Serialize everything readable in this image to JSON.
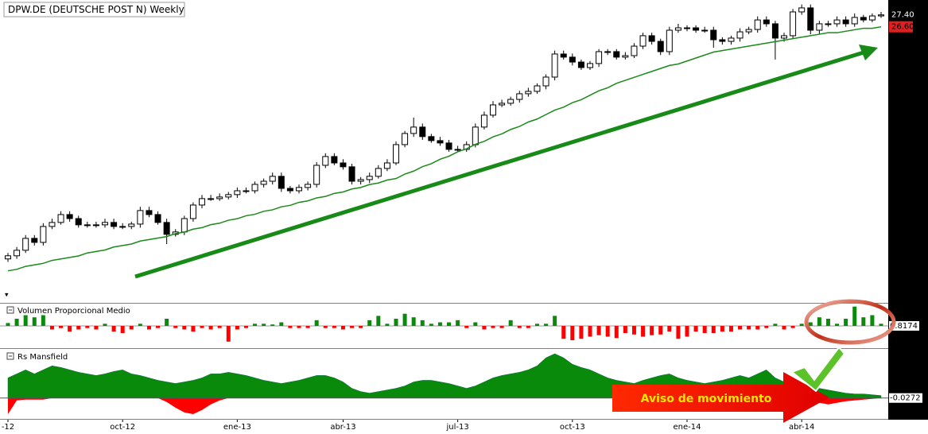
{
  "chart_data": {
    "type": "candlestick",
    "title": "DPW.DE (DEUTSCHE POST N) Weekly",
    "categories": [
      "-12",
      null,
      null,
      null,
      null,
      null,
      null,
      null,
      null,
      null,
      null,
      null,
      null,
      "oct-12",
      null,
      null,
      null,
      null,
      null,
      null,
      null,
      null,
      null,
      null,
      null,
      null,
      "ene-13",
      null,
      null,
      null,
      null,
      null,
      null,
      null,
      null,
      null,
      null,
      null,
      "abr-13",
      null,
      null,
      null,
      null,
      null,
      null,
      null,
      null,
      null,
      null,
      null,
      null,
      "jul-13",
      null,
      null,
      null,
      null,
      null,
      null,
      null,
      null,
      null,
      null,
      null,
      null,
      "oct-13",
      null,
      null,
      null,
      null,
      null,
      null,
      null,
      null,
      null,
      null,
      null,
      null,
      "ene-14",
      null,
      null,
      null,
      null,
      null,
      null,
      null,
      null,
      null,
      null,
      null,
      null,
      "abr-14",
      null,
      null,
      null,
      null,
      null,
      null,
      null,
      null,
      null
    ],
    "open": [
      11.0,
      11.21,
      11.58,
      12.38,
      12.11,
      13.18,
      13.45,
      13.98,
      13.71,
      13.29,
      13.29,
      13.29,
      13.45,
      13.18,
      13.18,
      13.34,
      14.25,
      13.98,
      13.45,
      12.65,
      12.81,
      13.71,
      14.62,
      15.05,
      15.05,
      15.16,
      15.32,
      15.58,
      15.58,
      16.01,
      16.22,
      16.55,
      15.74,
      15.58,
      15.8,
      16.01,
      17.29,
      17.88,
      17.45,
      17.19,
      16.22,
      16.33,
      16.55,
      17.08,
      17.45,
      18.68,
      19.43,
      19.86,
      19.22,
      18.95,
      18.79,
      18.36,
      18.36,
      18.68,
      19.86,
      20.66,
      21.35,
      21.46,
      21.72,
      22.1,
      22.26,
      22.63,
      23.22,
      24.77,
      24.56,
      24.23,
      23.86,
      24.13,
      24.93,
      24.93,
      24.56,
      24.66,
      25.3,
      26.0,
      25.62,
      24.93,
      26.37,
      26.53,
      26.53,
      26.37,
      26.37,
      25.73,
      25.62,
      25.84,
      26.26,
      26.42,
      27.06,
      26.8,
      25.84,
      26.0,
      27.6,
      27.87,
      26.37,
      26.8,
      26.8,
      27.06,
      26.8,
      27.23,
      27.06,
      27.33
    ],
    "high": [
      11.4,
      11.8,
      12.6,
      12.6,
      13.4,
      13.7,
      14.2,
      14.2,
      13.9,
      13.5,
      13.5,
      13.7,
      13.7,
      13.4,
      13.5,
      14.5,
      14.5,
      14.2,
      13.7,
      13.0,
      13.9,
      14.8,
      15.3,
      15.3,
      15.4,
      15.5,
      15.8,
      15.8,
      16.2,
      16.4,
      16.8,
      16.8,
      15.9,
      16.0,
      16.2,
      17.5,
      18.1,
      18.1,
      17.7,
      17.4,
      16.5,
      16.8,
      17.3,
      17.7,
      18.9,
      19.6,
      20.5,
      20.1,
      19.4,
      19.2,
      19.0,
      18.6,
      18.9,
      20.1,
      20.9,
      21.6,
      21.7,
      21.9,
      22.3,
      22.5,
      22.8,
      23.4,
      25.0,
      25.0,
      24.8,
      24.4,
      24.3,
      25.1,
      25.1,
      25.1,
      24.9,
      25.5,
      26.2,
      26.2,
      25.8,
      26.6,
      26.8,
      26.7,
      26.7,
      26.6,
      26.6,
      25.9,
      26.0,
      26.5,
      26.6,
      27.3,
      27.3,
      27.0,
      26.2,
      27.8,
      28.1,
      28.1,
      27.0,
      27.0,
      27.3,
      27.3,
      27.5,
      27.4,
      27.5,
      27.6
    ],
    "low": [
      10.8,
      11.0,
      11.4,
      11.9,
      11.9,
      13.0,
      13.3,
      13.5,
      13.1,
      13.1,
      13.1,
      13.1,
      13.0,
      13.0,
      13.0,
      13.1,
      13.8,
      13.3,
      12.0,
      12.5,
      12.6,
      13.5,
      14.4,
      14.9,
      14.9,
      15.0,
      15.1,
      15.4,
      15.4,
      15.8,
      16.0,
      15.5,
      15.4,
      15.4,
      15.6,
      15.8,
      17.1,
      17.3,
      17.0,
      16.0,
      16.0,
      16.1,
      16.4,
      16.9,
      17.3,
      18.5,
      19.2,
      19.0,
      18.8,
      18.6,
      18.2,
      18.2,
      18.2,
      18.5,
      19.7,
      20.5,
      21.2,
      21.3,
      21.5,
      21.9,
      22.1,
      22.4,
      23.0,
      24.4,
      24.0,
      23.7,
      23.7,
      23.9,
      24.7,
      24.4,
      24.4,
      24.5,
      25.1,
      25.4,
      24.7,
      24.7,
      26.2,
      26.3,
      26.2,
      26.2,
      25.2,
      25.4,
      25.4,
      25.6,
      26.1,
      26.2,
      26.6,
      24.4,
      25.6,
      25.8,
      27.4,
      26.1,
      26.1,
      26.6,
      26.6,
      26.6,
      26.6,
      26.9,
      26.9,
      27.2
    ],
    "close": [
      11.21,
      11.58,
      12.38,
      12.11,
      13.18,
      13.45,
      13.98,
      13.71,
      13.29,
      13.29,
      13.29,
      13.45,
      13.18,
      13.18,
      13.34,
      14.25,
      13.98,
      13.45,
      12.65,
      12.81,
      13.71,
      14.62,
      15.05,
      15.05,
      15.16,
      15.32,
      15.58,
      15.58,
      16.01,
      16.22,
      16.55,
      15.74,
      15.58,
      15.8,
      16.01,
      17.29,
      17.88,
      17.45,
      17.19,
      16.22,
      16.33,
      16.55,
      17.08,
      17.45,
      18.68,
      19.43,
      19.86,
      19.22,
      18.95,
      18.79,
      18.36,
      18.36,
      18.68,
      19.86,
      20.66,
      21.35,
      21.46,
      21.72,
      22.1,
      22.26,
      22.63,
      23.22,
      24.77,
      24.56,
      24.23,
      23.86,
      24.13,
      24.93,
      24.93,
      24.56,
      24.66,
      25.3,
      26.0,
      25.62,
      24.93,
      26.37,
      26.53,
      26.53,
      26.37,
      26.37,
      25.73,
      25.62,
      25.84,
      26.26,
      26.42,
      27.06,
      26.8,
      25.84,
      26.0,
      27.6,
      27.87,
      26.37,
      26.8,
      26.8,
      27.06,
      26.8,
      27.23,
      27.06,
      27.33,
      27.4
    ],
    "ylim": [
      8.1,
      28.4
    ],
    "ma": {
      "color": "#1a8a1a",
      "values": [
        10.2,
        10.3,
        10.5,
        10.6,
        10.7,
        10.9,
        11.0,
        11.1,
        11.2,
        11.4,
        11.5,
        11.6,
        11.8,
        11.9,
        12.0,
        12.2,
        12.3,
        12.4,
        12.5,
        12.7,
        12.8,
        13.0,
        13.1,
        13.3,
        13.4,
        13.6,
        13.7,
        13.9,
        14.0,
        14.2,
        14.3,
        14.5,
        14.6,
        14.8,
        14.9,
        15.1,
        15.2,
        15.4,
        15.5,
        15.7,
        15.8,
        16.0,
        16.1,
        16.3,
        16.4,
        16.7,
        16.9,
        17.2,
        17.4,
        17.7,
        17.9,
        18.2,
        18.4,
        18.7,
        18.9,
        19.2,
        19.4,
        19.7,
        19.9,
        20.2,
        20.4,
        20.7,
        21.0,
        21.2,
        21.5,
        21.7,
        22.0,
        22.3,
        22.5,
        22.8,
        23.0,
        23.2,
        23.4,
        23.6,
        23.8,
        24.0,
        24.1,
        24.3,
        24.5,
        24.7,
        24.9,
        25.0,
        25.1,
        25.2,
        25.3,
        25.4,
        25.5,
        25.6,
        25.7,
        25.8,
        25.9,
        26.0,
        26.1,
        26.2,
        26.2,
        26.3,
        26.4,
        26.5,
        26.5,
        26.6
      ]
    },
    "price_labels": [
      {
        "value": 27.4,
        "label": "27.40",
        "color": "#000000"
      },
      {
        "value": 26.6,
        "label": "26.60",
        "color": "#e02020"
      }
    ],
    "up_color": "#0a8a0a",
    "down_color": "#ff0000",
    "panes": [
      {
        "title": "Volumen Proporcional Medio",
        "ylim": [
          -30,
          30
        ],
        "value_label": "0.8174",
        "values": [
          4,
          10,
          15,
          12,
          15,
          -5,
          -3,
          -8,
          -5,
          -3,
          -5,
          3,
          -8,
          -10,
          -5,
          3,
          -5,
          -3,
          10,
          -3,
          -5,
          -8,
          -3,
          -5,
          -3,
          -22,
          -5,
          -3,
          3,
          3,
          2,
          5,
          -3,
          -3,
          -3,
          8,
          -3,
          -3,
          -5,
          -3,
          -3,
          8,
          14,
          3,
          10,
          17,
          12,
          8,
          3,
          5,
          5,
          8,
          -3,
          5,
          -5,
          -3,
          -3,
          8,
          -3,
          -3,
          3,
          3,
          14,
          -18,
          -20,
          -18,
          -15,
          -13,
          -15,
          -17,
          -10,
          -12,
          -15,
          -13,
          -12,
          -8,
          -18,
          -15,
          -8,
          -10,
          -10,
          -8,
          -8,
          -5,
          -5,
          -5,
          -3,
          3,
          -5,
          -3,
          3,
          5,
          12,
          10,
          3,
          10,
          27,
          12,
          15,
          3
        ]
      },
      {
        "title": "Rs Mansfield",
        "ylim": [
          -25,
          60
        ],
        "value_label": "-0.0272",
        "above": [
          25,
          30,
          35,
          30,
          35,
          40,
          38,
          35,
          32,
          30,
          28,
          30,
          33,
          35,
          30,
          28,
          25,
          22,
          20,
          18,
          20,
          22,
          25,
          30,
          30,
          32,
          30,
          28,
          25,
          22,
          20,
          18,
          20,
          22,
          25,
          28,
          28,
          25,
          20,
          12,
          8,
          6,
          8,
          10,
          12,
          15,
          20,
          22,
          22,
          20,
          18,
          15,
          12,
          15,
          20,
          25,
          28,
          30,
          32,
          35,
          40,
          50,
          55,
          50,
          42,
          38,
          35,
          30,
          25,
          22,
          20,
          18,
          22,
          25,
          28,
          30,
          25,
          22,
          20,
          18,
          20,
          22,
          25,
          28,
          25,
          30,
          35,
          25,
          20,
          15,
          12,
          10,
          12,
          10,
          8,
          6,
          5,
          5,
          4,
          3
        ],
        "below": [
          -20,
          -3,
          -2,
          -2,
          -2,
          0,
          0,
          0,
          0,
          0,
          0,
          0,
          0,
          0,
          0,
          0,
          0,
          0,
          -5,
          -12,
          -18,
          -20,
          -15,
          -8,
          -3,
          0,
          0,
          0,
          0,
          0,
          0,
          0,
          0,
          0,
          0,
          0,
          0,
          0,
          0,
          0,
          0,
          0,
          0,
          0,
          0,
          0,
          0,
          0,
          0,
          0,
          0,
          0,
          0,
          0,
          0,
          0,
          0,
          0,
          0,
          0,
          0,
          0,
          0,
          0,
          0,
          0,
          0,
          0,
          0,
          0,
          0,
          0,
          0,
          0,
          0,
          0,
          0,
          0,
          0,
          0,
          0,
          0,
          0,
          0,
          0,
          0,
          0,
          0,
          0,
          0,
          0,
          -3,
          -6,
          -8,
          -6,
          -4,
          -3,
          -2,
          -1,
          0
        ]
      }
    ],
    "annotation": "Aviso de movimiento"
  }
}
